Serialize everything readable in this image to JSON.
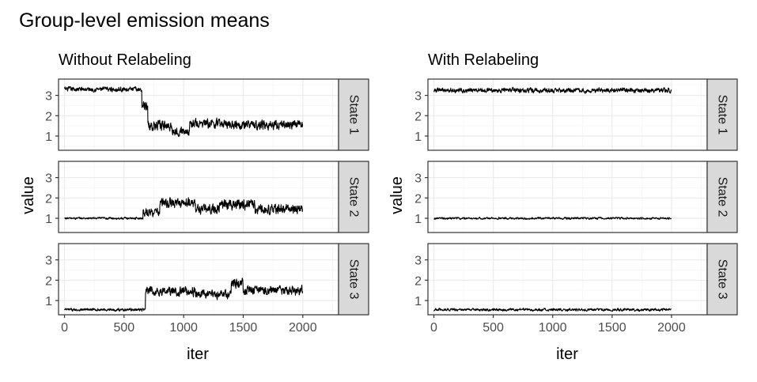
{
  "chart_data": {
    "type": "line",
    "title": "Group-level emission means",
    "ylabel": "value",
    "xlabel": "iter",
    "x_ticks": [
      0,
      500,
      1000,
      1500,
      2000
    ],
    "y_ticks": [
      1,
      2,
      3
    ],
    "xlim": [
      -50,
      2300
    ],
    "ylim": [
      0.3,
      3.8
    ],
    "grid": true,
    "legend": "none",
    "colors": {
      "line": "#000000",
      "strip_fill": "#d9d9d9",
      "border": "#333333",
      "grid_major": "#ebebeb",
      "grid_minor": "#f5f5f5"
    },
    "panels": [
      {
        "subtitle": "Without Relabeling",
        "facets": [
          {
            "strip": "State 1",
            "segments": [
              {
                "from": 0,
                "to": 650,
                "level": 3.3,
                "noise": 0.09
              },
              {
                "from": 650,
                "to": 700,
                "level": 2.5,
                "noise": 0.2
              },
              {
                "from": 700,
                "to": 900,
                "level": 1.5,
                "noise": 0.18
              },
              {
                "from": 900,
                "to": 1050,
                "level": 1.25,
                "noise": 0.16
              },
              {
                "from": 1050,
                "to": 1500,
                "level": 1.6,
                "noise": 0.18
              },
              {
                "from": 1500,
                "to": 2000,
                "level": 1.55,
                "noise": 0.17
              }
            ]
          },
          {
            "strip": "State 2",
            "segments": [
              {
                "from": 0,
                "to": 660,
                "level": 1.0,
                "noise": 0.04
              },
              {
                "from": 660,
                "to": 800,
                "level": 1.3,
                "noise": 0.15
              },
              {
                "from": 800,
                "to": 1100,
                "level": 1.75,
                "noise": 0.18
              },
              {
                "from": 1100,
                "to": 1300,
                "level": 1.45,
                "noise": 0.18
              },
              {
                "from": 1300,
                "to": 1600,
                "level": 1.7,
                "noise": 0.2
              },
              {
                "from": 1600,
                "to": 2000,
                "level": 1.45,
                "noise": 0.18
              }
            ]
          },
          {
            "strip": "State 3",
            "segments": [
              {
                "from": 0,
                "to": 680,
                "level": 0.55,
                "noise": 0.05
              },
              {
                "from": 680,
                "to": 1100,
                "level": 1.45,
                "noise": 0.18
              },
              {
                "from": 1100,
                "to": 1400,
                "level": 1.3,
                "noise": 0.15
              },
              {
                "from": 1400,
                "to": 1500,
                "level": 1.85,
                "noise": 0.2
              },
              {
                "from": 1500,
                "to": 2000,
                "level": 1.5,
                "noise": 0.18
              }
            ]
          }
        ]
      },
      {
        "subtitle": "With Relabeling",
        "facets": [
          {
            "strip": "State 1",
            "segments": [
              {
                "from": 0,
                "to": 2000,
                "level": 3.25,
                "noise": 0.09
              }
            ]
          },
          {
            "strip": "State 2",
            "segments": [
              {
                "from": 0,
                "to": 2000,
                "level": 1.0,
                "noise": 0.04
              }
            ]
          },
          {
            "strip": "State 3",
            "segments": [
              {
                "from": 0,
                "to": 2000,
                "level": 0.55,
                "noise": 0.05
              }
            ]
          }
        ]
      }
    ]
  }
}
